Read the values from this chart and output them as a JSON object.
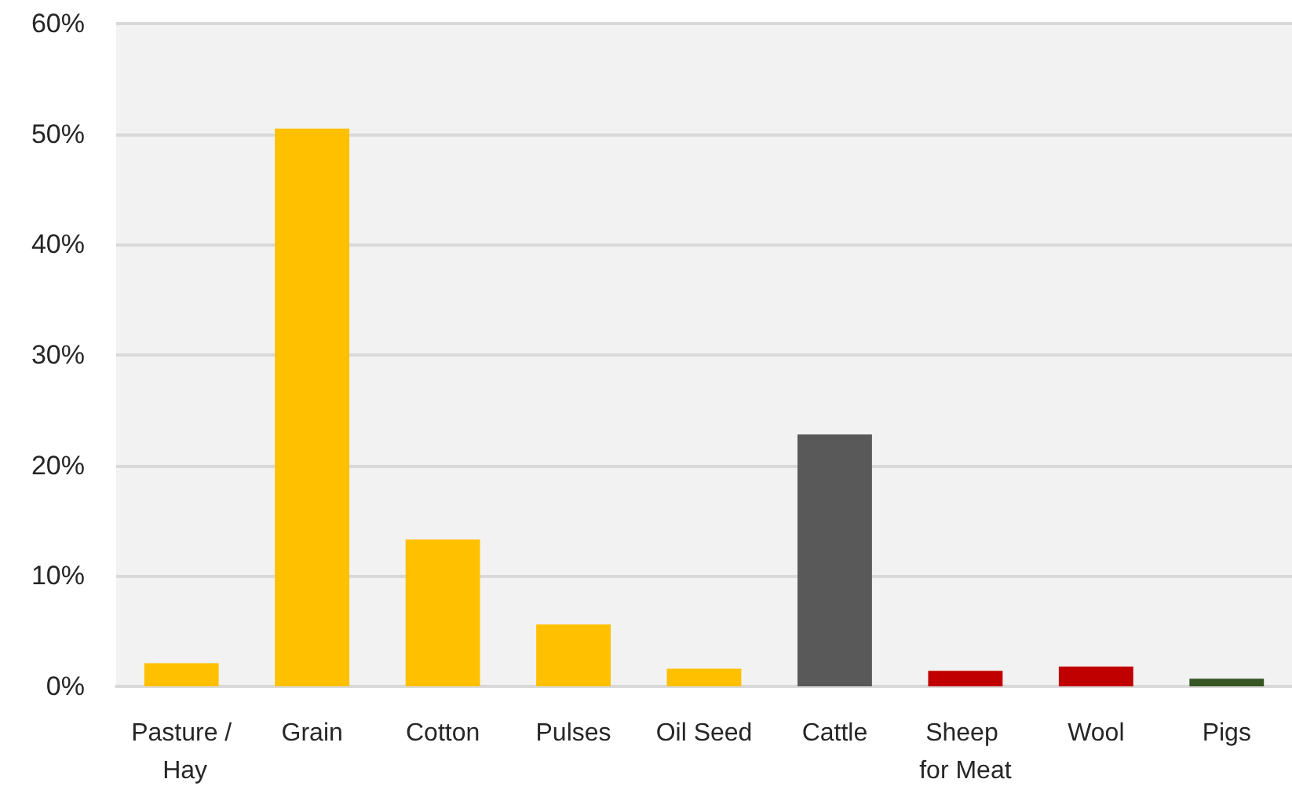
{
  "chart_data": {
    "type": "bar",
    "categories": [
      "Pasture / Hay",
      "Grain",
      "Cotton",
      "Pulses",
      "Oil Seed",
      "Cattle",
      "Sheep for Meat",
      "Wool",
      "Pigs"
    ],
    "values": [
      2.1,
      50.5,
      13.3,
      5.6,
      1.6,
      22.8,
      1.4,
      1.8,
      0.7
    ],
    "colors": [
      "#ffc000",
      "#ffc000",
      "#ffc000",
      "#ffc000",
      "#ffc000",
      "#595959",
      "#c00000",
      "#c00000",
      "#375623"
    ],
    "ylim": [
      0,
      60
    ],
    "yticks": [
      {
        "value": 0,
        "label": "0%"
      },
      {
        "value": 10,
        "label": "10%"
      },
      {
        "value": 20,
        "label": "20%"
      },
      {
        "value": 30,
        "label": "30%"
      },
      {
        "value": 40,
        "label": "40%"
      },
      {
        "value": 50,
        "label": "50%"
      },
      {
        "value": 60,
        "label": "60%"
      }
    ],
    "grid": true
  }
}
